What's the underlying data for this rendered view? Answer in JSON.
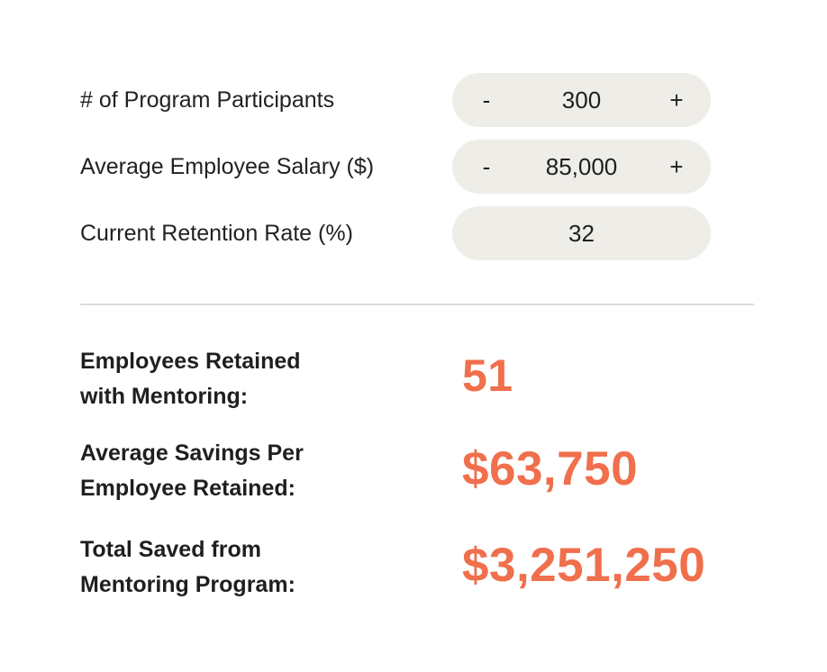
{
  "inputs": {
    "participants": {
      "label": "# of Program Participants",
      "value": "300",
      "minus": "-",
      "plus": "+"
    },
    "salary": {
      "label": "Average Employee Salary ($)",
      "value": "85,000",
      "minus": "-",
      "plus": "+"
    },
    "retention": {
      "label": "Current Retention Rate (%)",
      "value": "32"
    }
  },
  "results": {
    "retained": {
      "label_line1": "Employees Retained",
      "label_line2": "with Mentoring:",
      "value": "51"
    },
    "avg_savings": {
      "label_line1": "Average Savings Per",
      "label_line2": "Employee Retained:",
      "value": "$63,750"
    },
    "total_saved": {
      "label_line1": "Total Saved from",
      "label_line2": "Mentoring Program:",
      "value": "$3,251,250"
    }
  },
  "colors": {
    "accent": "#f06f4c",
    "pill_background": "#efede7",
    "divider": "#dcdcdc"
  }
}
